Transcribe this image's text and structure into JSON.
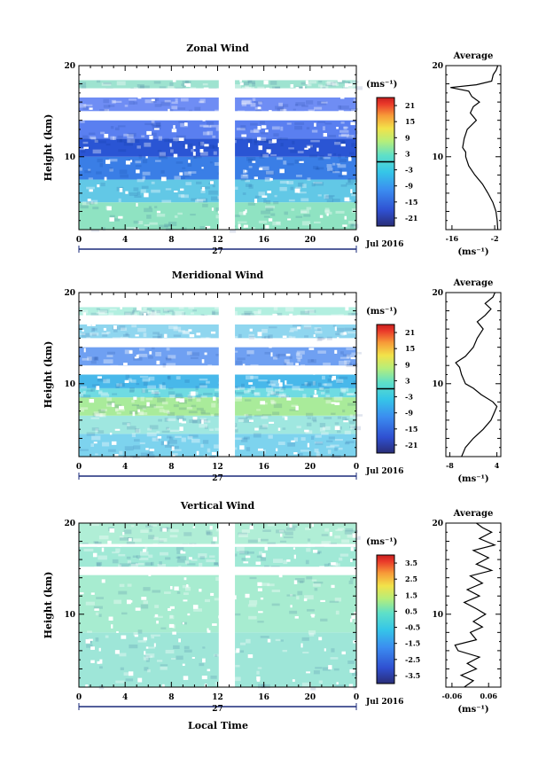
{
  "figure": {
    "xlabel": "Local Time",
    "date_label": "27",
    "month_label": "Jul 2016"
  },
  "chart_data": [
    {
      "id": "zonal",
      "type": "heatmap",
      "title": "Zonal Wind",
      "ylabel": "Height (km)",
      "xlim": [
        0,
        24
      ],
      "ylim": [
        2,
        20
      ],
      "x_ticks": [
        "0",
        "4",
        "8",
        "12",
        "16",
        "20",
        "0"
      ],
      "y_ticks": [
        {
          "v": 10,
          "label": "10"
        },
        {
          "v": 20,
          "label": "20"
        }
      ],
      "colorbar": {
        "unit": "(ms⁻¹)",
        "labels": [
          "21",
          "15",
          "9",
          "3",
          "-3",
          "-9",
          "-15",
          "-21"
        ],
        "range": [
          -24,
          24
        ],
        "zero_line": 0
      },
      "data_gap_hours": [
        12.1,
        13.5
      ],
      "white_bands_km": [
        [
          14.0,
          15.0
        ],
        [
          17.0,
          17.5
        ],
        [
          19.0,
          20.0
        ]
      ],
      "layers": [
        {
          "from": 2.0,
          "to": 5.0,
          "color": "#8fe3c2"
        },
        {
          "from": 5.0,
          "to": 7.5,
          "color": "#62c8e6"
        },
        {
          "from": 7.5,
          "to": 10.0,
          "color": "#3a7ee6"
        },
        {
          "from": 10.0,
          "to": 12.0,
          "color": "#2a55d4"
        },
        {
          "from": 12.0,
          "to": 14.0,
          "color": "#5a7ff0"
        },
        {
          "from": 15.0,
          "to": 16.5,
          "color": "#6f8df4"
        },
        {
          "from": 17.5,
          "to": 18.4,
          "color": "#9ee3d0"
        }
      ],
      "average": {
        "title": "Average",
        "xlim": [
          -18,
          0
        ],
        "x_ticks": [
          {
            "v": -16,
            "label": "-16"
          },
          {
            "v": -2,
            "label": "-2"
          }
        ],
        "xlabel": "(ms⁻¹)",
        "profile": [
          [
            -1.0,
            2.0
          ],
          [
            -1.2,
            3.0
          ],
          [
            -1.6,
            4.0
          ],
          [
            -2.6,
            5.0
          ],
          [
            -4.2,
            6.0
          ],
          [
            -6.0,
            7.0
          ],
          [
            -8.5,
            8.0
          ],
          [
            -10.5,
            9.0
          ],
          [
            -11.5,
            10.0
          ],
          [
            -11.5,
            10.5
          ],
          [
            -12.5,
            11.0
          ],
          [
            -12.0,
            12.0
          ],
          [
            -11.0,
            13.0
          ],
          [
            -8.0,
            14.0
          ],
          [
            -10.0,
            14.8
          ],
          [
            -9.0,
            15.5
          ],
          [
            -7.0,
            16.0
          ],
          [
            -9.5,
            16.6
          ],
          [
            -10.5,
            17.2
          ],
          [
            -16.5,
            17.6
          ],
          [
            -8.0,
            17.9
          ],
          [
            -3.0,
            18.3
          ],
          [
            -2.5,
            19.0
          ],
          [
            -1.5,
            19.5
          ],
          [
            -1.0,
            20.0
          ]
        ]
      }
    },
    {
      "id": "meridional",
      "type": "heatmap",
      "title": "Meridional Wind",
      "ylabel": "Height (km)",
      "xlim": [
        0,
        24
      ],
      "ylim": [
        2,
        20
      ],
      "x_ticks": [
        "0",
        "4",
        "8",
        "12",
        "16",
        "20",
        "0"
      ],
      "y_ticks": [
        {
          "v": 10,
          "label": "10"
        },
        {
          "v": 20,
          "label": "20"
        }
      ],
      "colorbar": {
        "unit": "(ms⁻¹)",
        "labels": [
          "21",
          "15",
          "9",
          "3",
          "-3",
          "-9",
          "-15",
          "-21"
        ],
        "range": [
          -24,
          24
        ],
        "zero_line": 0
      },
      "data_gap_hours": [
        12.1,
        13.5
      ],
      "white_bands_km": [
        [
          17.0,
          17.5
        ],
        [
          19.0,
          20.0
        ]
      ],
      "layers": [
        {
          "from": 2.0,
          "to": 4.5,
          "color": "#7dd3ee"
        },
        {
          "from": 4.5,
          "to": 6.5,
          "color": "#9fe7e0"
        },
        {
          "from": 6.5,
          "to": 8.5,
          "color": "#a9eb9a"
        },
        {
          "from": 8.5,
          "to": 9.5,
          "color": "#6fdbe2"
        },
        {
          "from": 9.5,
          "to": 11.0,
          "color": "#48b8ea"
        },
        {
          "from": 12.0,
          "to": 14.0,
          "color": "#6fa0f2"
        },
        {
          "from": 15.0,
          "to": 16.5,
          "color": "#8fd6ef"
        },
        {
          "from": 17.5,
          "to": 18.4,
          "color": "#b2efe0"
        }
      ],
      "average": {
        "title": "Average",
        "xlim": [
          -9,
          5
        ],
        "x_ticks": [
          {
            "v": -8,
            "label": "-8"
          },
          {
            "v": 4,
            "label": "4"
          }
        ],
        "xlabel": "(ms⁻¹)",
        "profile": [
          [
            -5.0,
            2.0
          ],
          [
            -4.0,
            3.0
          ],
          [
            -2.0,
            4.0
          ],
          [
            0.5,
            5.0
          ],
          [
            2.5,
            6.0
          ],
          [
            3.5,
            7.0
          ],
          [
            4.0,
            7.5
          ],
          [
            3.0,
            8.0
          ],
          [
            0.0,
            8.8
          ],
          [
            -2.0,
            9.5
          ],
          [
            -4.0,
            10.0
          ],
          [
            -5.0,
            11.0
          ],
          [
            -5.5,
            11.8
          ],
          [
            -6.5,
            12.3
          ],
          [
            -4.0,
            13.0
          ],
          [
            -2.0,
            14.0
          ],
          [
            -1.0,
            15.0
          ],
          [
            0.5,
            16.0
          ],
          [
            -1.0,
            16.8
          ],
          [
            1.0,
            17.5
          ],
          [
            2.5,
            18.2
          ],
          [
            1.0,
            18.8
          ],
          [
            3.0,
            19.5
          ],
          [
            3.5,
            20.0
          ]
        ]
      }
    },
    {
      "id": "vertical",
      "type": "heatmap",
      "title": "Vertical Wind",
      "ylabel": "Height (km)",
      "xlim": [
        0,
        24
      ],
      "ylim": [
        2,
        20
      ],
      "x_ticks": [
        "0",
        "4",
        "8",
        "12",
        "16",
        "20",
        "0"
      ],
      "y_ticks": [
        {
          "v": 10,
          "label": "10"
        },
        {
          "v": 20,
          "label": "20"
        }
      ],
      "colorbar": {
        "unit": "(ms⁻¹)",
        "labels": [
          "3.5",
          "2.5",
          "1.5",
          "0.5",
          "-0.5",
          "-1.5",
          "-2.5",
          "-3.5"
        ],
        "range": [
          -4,
          4
        ],
        "zero_line": null
      },
      "data_gap_hours": [
        12.1,
        13.5
      ],
      "white_bands_km": [
        [
          14.3,
          15.2
        ],
        [
          17.4,
          17.7
        ]
      ],
      "layers": [
        {
          "from": 2.0,
          "to": 8.0,
          "color": "#9ee6d8"
        },
        {
          "from": 8.0,
          "to": 14.3,
          "color": "#a7ecd0"
        },
        {
          "from": 15.2,
          "to": 17.4,
          "color": "#a0e9d6"
        },
        {
          "from": 17.7,
          "to": 20.0,
          "color": "#b0eed6"
        }
      ],
      "average": {
        "title": "Average",
        "xlim": [
          -0.08,
          0.1
        ],
        "x_ticks": [
          {
            "v": -0.06,
            "label": "-0.06"
          },
          {
            "v": 0.06,
            "label": "0.06"
          }
        ],
        "xlabel": "(ms⁻¹)",
        "profile": [
          [
            -0.02,
            2.0
          ],
          [
            0.01,
            2.7
          ],
          [
            -0.03,
            3.3
          ],
          [
            0.02,
            4.0
          ],
          [
            -0.01,
            4.6
          ],
          [
            0.03,
            5.3
          ],
          [
            -0.04,
            6.0
          ],
          [
            -0.05,
            6.6
          ],
          [
            0.02,
            7.2
          ],
          [
            0.0,
            8.0
          ],
          [
            0.04,
            8.6
          ],
          [
            0.01,
            9.2
          ],
          [
            0.05,
            10.0
          ],
          [
            0.02,
            10.6
          ],
          [
            -0.02,
            11.3
          ],
          [
            0.03,
            12.0
          ],
          [
            -0.01,
            12.7
          ],
          [
            0.04,
            13.4
          ],
          [
            0.0,
            14.2
          ],
          [
            0.07,
            14.8
          ],
          [
            0.02,
            15.5
          ],
          [
            0.06,
            16.2
          ],
          [
            0.01,
            17.0
          ],
          [
            0.08,
            17.6
          ],
          [
            0.03,
            18.3
          ],
          [
            0.07,
            19.0
          ],
          [
            0.04,
            19.5
          ],
          [
            0.02,
            20.0
          ]
        ]
      }
    }
  ]
}
